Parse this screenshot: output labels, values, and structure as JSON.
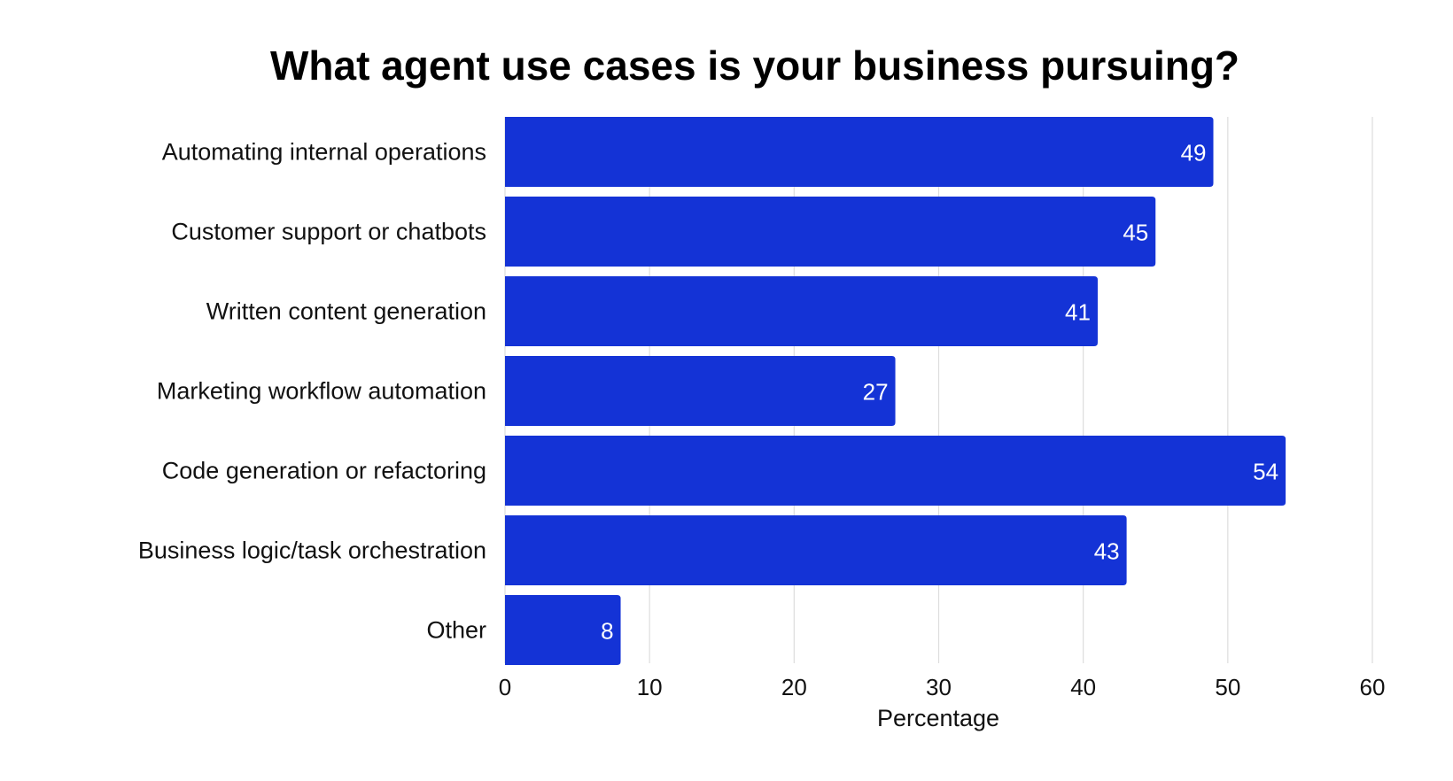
{
  "chart_data": {
    "type": "bar",
    "orientation": "horizontal",
    "title": "What agent use cases is your business pursuing?",
    "xlabel": "Percentage",
    "ylabel": "",
    "categories": [
      "Automating internal operations",
      "Customer support or chatbots",
      "Written content generation",
      "Marketing workflow automation",
      "Code generation or refactoring",
      "Business logic/task orchestration",
      "Other"
    ],
    "values": [
      49,
      45,
      41,
      27,
      54,
      43,
      8
    ],
    "xlim": [
      0,
      60
    ],
    "xticks": [
      0,
      10,
      20,
      30,
      40,
      50,
      60
    ],
    "grid": true,
    "data_labels": true,
    "bar_color": "#1433D6"
  }
}
